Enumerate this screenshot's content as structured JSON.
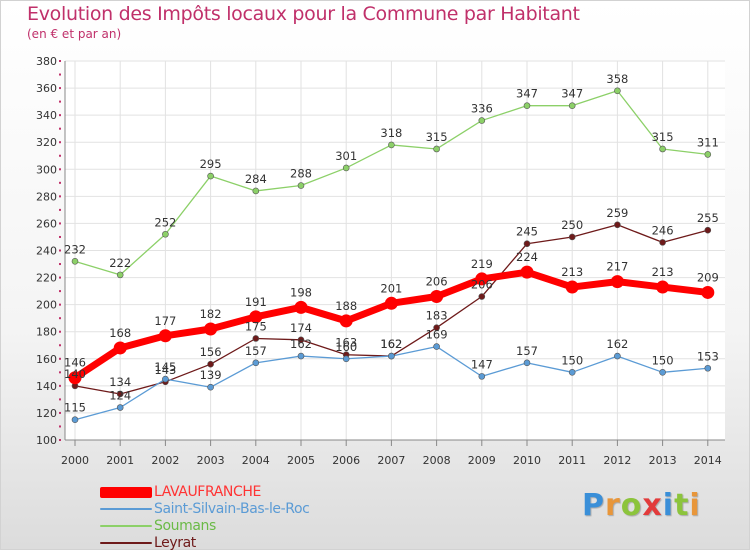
{
  "header": {
    "title": "Evolution des Impôts locaux pour la Commune par Habitant",
    "subtitle": "(en € et par an)"
  },
  "brand": {
    "text": "Proxiti",
    "letters": [
      "P",
      "r",
      "o",
      "x",
      "i",
      "t",
      "i"
    ],
    "colors": [
      "#3a8fd8",
      "#e8963a",
      "#8cc43c",
      "#e23b3b",
      "#3a8fd8",
      "#8cc43c",
      "#e8963a"
    ]
  },
  "chart_data": {
    "type": "line",
    "title": "Evolution des Impôts locaux pour la Commune par Habitant",
    "subtitle": "(en € et par an)",
    "xlabel": "",
    "ylabel": "",
    "ylim": [
      100,
      380
    ],
    "ytick_step": 20,
    "grid": true,
    "legend_position": "bottom-left",
    "x": [
      "2000",
      "2001",
      "2002",
      "2003",
      "2004",
      "2005",
      "2006",
      "2007",
      "2008",
      "2009",
      "2010",
      "2011",
      "2012",
      "2013",
      "2014"
    ],
    "series": [
      {
        "name": "Soumans",
        "color": "#8cd068",
        "values": [
          232,
          222,
          252,
          295,
          284,
          288,
          301,
          318,
          315,
          336,
          347,
          347,
          358,
          315,
          311
        ]
      },
      {
        "name": "Leyrat",
        "color": "#6e1a1a",
        "values": [
          140,
          134,
          143,
          156,
          175,
          174,
          163,
          162,
          183,
          206,
          245,
          250,
          259,
          246,
          255
        ]
      },
      {
        "name": "Saint-Silvain-Bas-le-Roc",
        "color": "#5b9bd5",
        "values": [
          115,
          124,
          145,
          139,
          157,
          162,
          160,
          162,
          169,
          147,
          157,
          150,
          162,
          150,
          153
        ]
      },
      {
        "name": "LAVAUFRANCHE",
        "color": "#ff0000",
        "values": [
          146,
          168,
          177,
          182,
          191,
          198,
          188,
          201,
          206,
          219,
          224,
          213,
          217,
          213,
          209
        ]
      }
    ],
    "legend": [
      "LAVAUFRANCHE",
      "Saint-Silvain-Bas-le-Roc",
      "Soumans",
      "Leyrat"
    ]
  }
}
